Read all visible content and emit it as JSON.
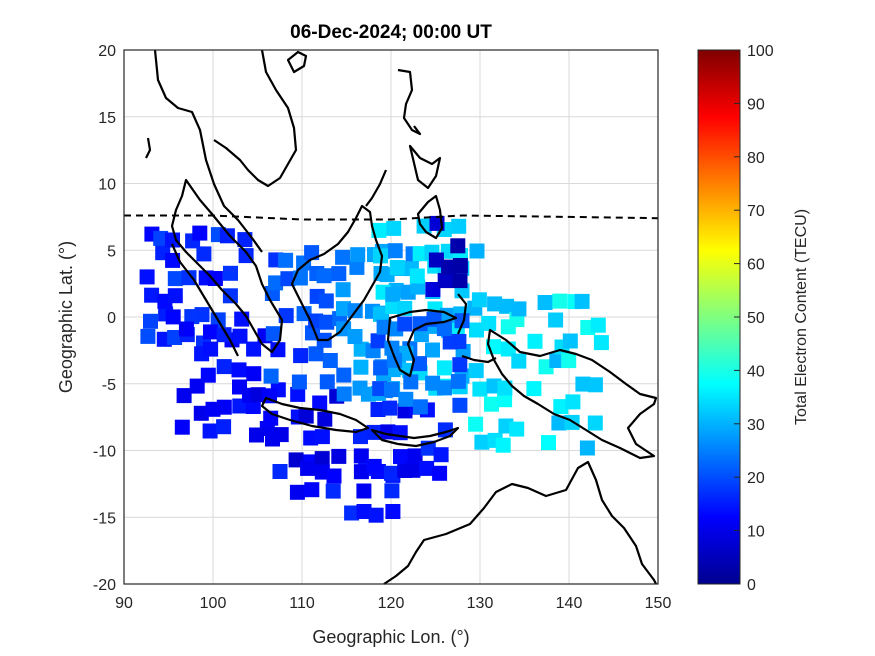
{
  "chart_data": {
    "type": "heatmap",
    "title": "06-Dec-2024; 00:00 UT",
    "xlabel": "Geographic Lon. (°)",
    "ylabel": "Geographic Lat. (°)",
    "xlim": [
      90,
      150
    ],
    "ylim": [
      -20,
      20
    ],
    "xticks": [
      "90",
      "100",
      "110",
      "120",
      "130",
      "140",
      "150"
    ],
    "yticks": [
      "20",
      "15",
      "10",
      "5",
      "0",
      "-5",
      "-10",
      "-15",
      "-20"
    ],
    "grid": true,
    "colorbar": {
      "label": "Total Electron Content (TECU)",
      "range": [
        0,
        100
      ],
      "ticks": [
        "0",
        "10",
        "20",
        "30",
        "40",
        "50",
        "60",
        "70",
        "80",
        "90",
        "100"
      ],
      "colormap": "jet"
    },
    "dip_equator": [
      [
        90,
        7.6
      ],
      [
        100,
        7.6
      ],
      [
        110,
        7.3
      ],
      [
        120,
        7.3
      ],
      [
        128,
        7.6
      ],
      [
        140,
        7.5
      ],
      [
        150,
        7.4
      ]
    ],
    "cells": [
      {
        "lon_range": [
          92,
          104
        ],
        "lat_range": [
          -1,
          8
        ],
        "tec_range": [
          12,
          20
        ]
      },
      {
        "lon_range": [
          96,
          108
        ],
        "lat_range": [
          -8,
          1
        ],
        "tec_range": [
          10,
          16
        ]
      },
      {
        "lon_range": [
          104,
          116
        ],
        "lat_range": [
          -10,
          -4
        ],
        "tec_range": [
          8,
          14
        ]
      },
      {
        "lon_range": [
          107,
          120
        ],
        "lat_range": [
          -14,
          -10
        ],
        "tec_range": [
          11,
          17
        ]
      },
      {
        "lon_range": [
          116,
          126
        ],
        "lat_range": [
          -11,
          -6
        ],
        "tec_range": [
          10,
          18
        ]
      },
      {
        "lon_range": [
          106,
          114
        ],
        "lat_range": [
          -4,
          6
        ],
        "tec_range": [
          16,
          24
        ]
      },
      {
        "lon_range": [
          114,
          122
        ],
        "lat_range": [
          -5,
          6
        ],
        "tec_range": [
          24,
          32
        ]
      },
      {
        "lon_range": [
          118,
          129
        ],
        "lat_range": [
          -5,
          8
        ],
        "tec_range": [
          28,
          36
        ]
      },
      {
        "lon_range": [
          124,
          128
        ],
        "lat_range": [
          3,
          8
        ],
        "tec_range": [
          4,
          10
        ]
      },
      {
        "lon_range": [
          129,
          143
        ],
        "lat_range": [
          -9,
          3
        ],
        "tec_range": [
          30,
          40
        ]
      },
      {
        "lon_range": [
          118,
          128
        ],
        "lat_range": [
          -6,
          1
        ],
        "tec_range": [
          18,
          26
        ]
      }
    ]
  }
}
